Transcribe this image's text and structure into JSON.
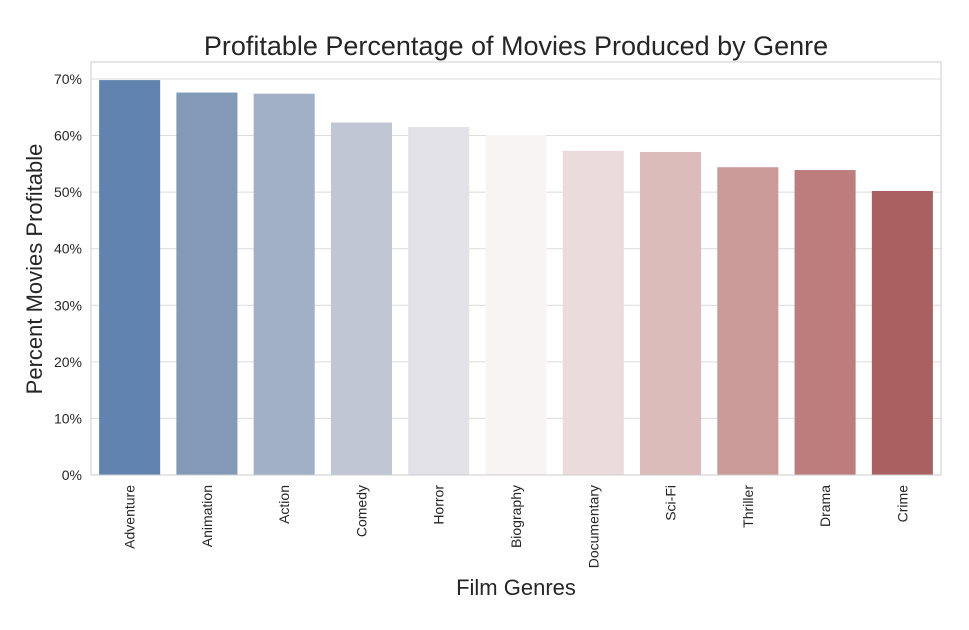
{
  "chart_data": {
    "type": "bar",
    "title": "Profitable Percentage of Movies Produced by Genre",
    "xlabel": "Film Genres",
    "ylabel": "Percent Movies Profitable",
    "ylim": [
      0,
      73
    ],
    "yticks": [
      0,
      10,
      20,
      30,
      40,
      50,
      60,
      70
    ],
    "ytick_labels": [
      "0%",
      "10%",
      "20%",
      "30%",
      "40%",
      "50%",
      "60%",
      "70%"
    ],
    "categories": [
      "Adventure",
      "Animation",
      "Action",
      "Comedy",
      "Horror",
      "Biography",
      "Documentary",
      "Sci-Fi",
      "Thriller",
      "Drama",
      "Crime"
    ],
    "values": [
      69.8,
      67.6,
      67.4,
      62.3,
      61.5,
      60.1,
      57.3,
      57.1,
      54.4,
      53.9,
      50.2
    ],
    "bar_colors": [
      "#6083b0",
      "#8299b8",
      "#a1afc7",
      "#c0c6d4",
      "#e2e2e8",
      "#f9f4f4",
      "#ecdbdc",
      "#dcbcbb",
      "#ca9a99",
      "#bd7d7c",
      "#aa5f60"
    ],
    "grid": true,
    "legend": "none"
  }
}
